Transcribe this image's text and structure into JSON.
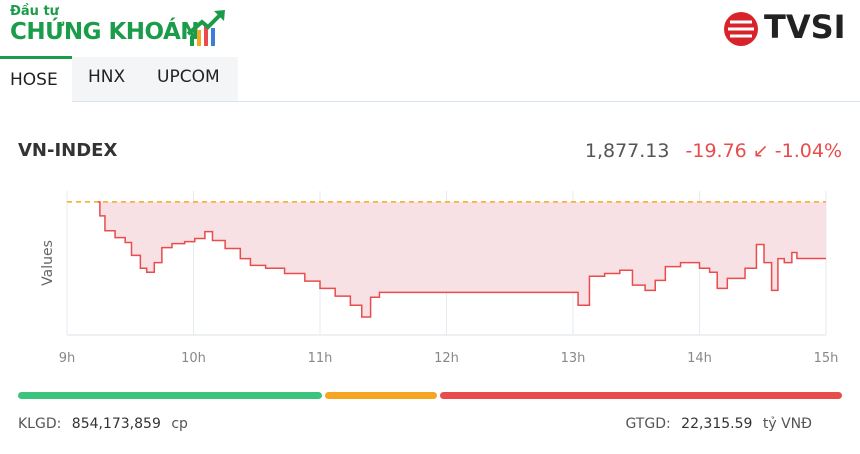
{
  "header": {
    "logo_top": "Đầu tư",
    "logo_main": "CHỨNG KHOÁN",
    "brand": "TVSI"
  },
  "tabs": [
    "HOSE",
    "HNX",
    "UPCOM"
  ],
  "summary": {
    "index": "VN-INDEX",
    "value": "1,877.13",
    "change": "-19.76",
    "change_pct": "-1.04%"
  },
  "chart_data": {
    "type": "line",
    "y_label": "Values",
    "color": "#e84c4c",
    "reference_color": "#f5a623",
    "area_color": "#f8e1e4",
    "reference": 1896.89,
    "x": [
      9.245,
      9.26,
      9.3,
      9.38,
      9.46,
      9.51,
      9.58,
      9.63,
      9.69,
      9.75,
      9.83,
      9.93,
      10.01,
      10.09,
      10.15,
      10.25,
      10.37,
      10.45,
      10.57,
      10.72,
      10.88,
      11.0,
      11.12,
      11.24,
      11.33,
      11.4,
      11.47,
      12.98,
      13.04,
      13.13,
      13.25,
      13.37,
      13.47,
      13.57,
      13.65,
      13.73,
      13.85,
      14.0,
      14.08,
      14.14,
      14.22,
      14.36,
      14.45,
      14.51,
      14.57,
      14.62,
      14.67,
      14.73,
      14.77,
      15.0
    ],
    "values": [
      1896.89,
      1892.0,
      1886.8,
      1884.4,
      1882.7,
      1878.2,
      1873.7,
      1872.3,
      1875.7,
      1880.9,
      1882.3,
      1883.0,
      1884.1,
      1886.5,
      1883.4,
      1880.6,
      1877.1,
      1874.7,
      1873.7,
      1871.9,
      1869.2,
      1866.7,
      1864.0,
      1860.8,
      1856.7,
      1863.6,
      1865.3,
      1865.3,
      1860.8,
      1870.9,
      1871.9,
      1873.0,
      1867.8,
      1866.0,
      1869.5,
      1874.3,
      1875.7,
      1873.7,
      1872.3,
      1866.7,
      1870.2,
      1873.7,
      1882.0,
      1875.7,
      1866.0,
      1877.1,
      1875.7,
      1879.2,
      1877.13,
      1877.13
    ],
    "xlim": [
      9,
      15
    ],
    "ylim": [
      1850.4,
      1900.7
    ],
    "xticks": [
      {
        "value": 9,
        "label": "9h"
      },
      {
        "value": 10,
        "label": "10h"
      },
      {
        "value": 11,
        "label": "11h"
      },
      {
        "value": 12,
        "label": "12h"
      },
      {
        "value": 13,
        "label": "13h"
      },
      {
        "value": 14,
        "label": "14h"
      },
      {
        "value": 15,
        "label": "15h"
      }
    ],
    "grid": true
  },
  "breadth": {
    "values": [
      37,
      14,
      49
    ],
    "colors": [
      "#3cc47c",
      "#f5a623",
      "#e84c4c"
    ]
  },
  "footer": {
    "volume_label": "KLGD:",
    "volume": "854,173,859",
    "volume_unit": "cp",
    "value_label": "GTGD:",
    "value": "22,315.59",
    "value_unit": "tỷ VNĐ"
  }
}
